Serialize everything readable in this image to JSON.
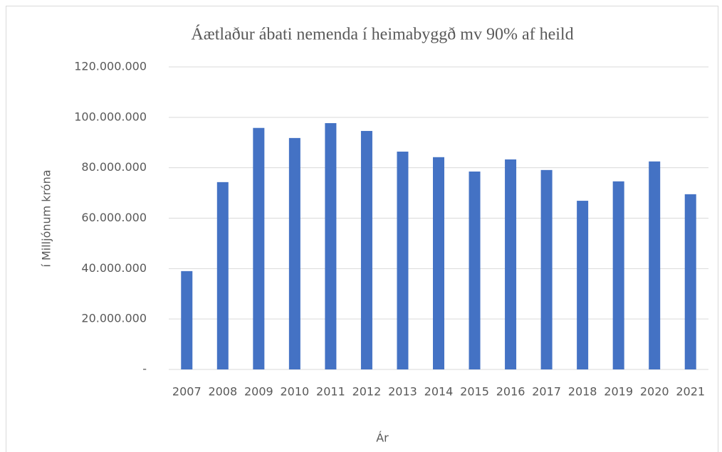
{
  "chart_data": {
    "type": "bar",
    "title": "Áætlaður ábati nemenda í heimabyggð mv 90% af heild",
    "x_label": "Ár",
    "y_label": "í Milljónum króna",
    "categories": [
      "2007",
      "2008",
      "2009",
      "2010",
      "2011",
      "2012",
      "2013",
      "2014",
      "2015",
      "2016",
      "2017",
      "2018",
      "2019",
      "2020",
      "2021"
    ],
    "values": [
      39000000,
      74300000,
      95800000,
      91800000,
      97700000,
      94600000,
      86400000,
      84200000,
      78500000,
      83300000,
      79100000,
      66900000,
      74600000,
      82500000,
      69500000
    ],
    "color": "#4472c4",
    "ylim": [
      0,
      120000000
    ],
    "yticks": [
      {
        "value": 0,
        "label": "-"
      },
      {
        "value": 20000000,
        "label": "20.000.000"
      },
      {
        "value": 40000000,
        "label": "40.000.000"
      },
      {
        "value": 60000000,
        "label": "60.000.000"
      },
      {
        "value": 80000000,
        "label": "80.000.000"
      },
      {
        "value": 100000000,
        "label": "100.000.000"
      },
      {
        "value": 120000000,
        "label": "120.000.000"
      }
    ],
    "grid": true
  }
}
